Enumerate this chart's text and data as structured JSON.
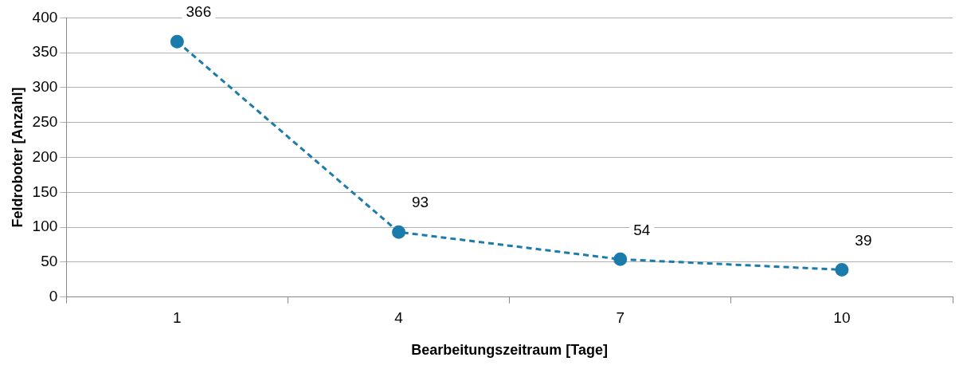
{
  "chart_data": {
    "type": "line",
    "xlabel": "Bearbeitungszeitraum [Tage]",
    "ylabel": "Feldroboter [Anzahl]",
    "categories": [
      "1",
      "4",
      "7",
      "10"
    ],
    "series": [
      {
        "color": "#1b7bab",
        "values": [
          366,
          93,
          54,
          39
        ]
      }
    ],
    "ylim": [
      0,
      400
    ],
    "yticks": [
      0,
      50,
      100,
      150,
      200,
      250,
      300,
      350,
      400
    ],
    "grid": "y",
    "legend": false,
    "marker": "circle",
    "line_style": "dashed",
    "data_labels": true
  }
}
